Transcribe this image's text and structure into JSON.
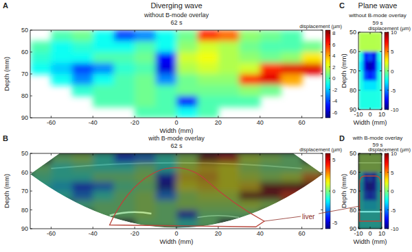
{
  "chart_data": [
    {
      "type": "heatmap",
      "label": "A",
      "title": "Diverging wave",
      "subtitle": "without B-mode overlay",
      "time_label": "62 s",
      "x_label": "Width (mm)",
      "y_label": "Depth (mm)",
      "xlim": [
        -70,
        70
      ],
      "ylim": [
        50,
        90
      ],
      "xticks": [
        -60,
        -40,
        -20,
        0,
        20,
        40,
        60
      ],
      "yticks": [
        50,
        60,
        70,
        80,
        90
      ],
      "x": [
        -65,
        -55,
        -45,
        -35,
        -25,
        -15,
        -5,
        5,
        15,
        25,
        35,
        45,
        55,
        65
      ],
      "y": [
        52.5,
        57.5,
        62.5,
        67.5,
        72.5,
        77.5,
        82.5,
        87.5
      ],
      "cells": [
        [
          null,
          0,
          0.5,
          -1,
          -4,
          -3,
          -1,
          0.5,
          6,
          5,
          1,
          0.5,
          0,
          null
        ],
        [
          0,
          -1,
          -0.5,
          -1,
          -1,
          0,
          -1,
          1,
          2,
          1.5,
          0.5,
          0,
          0,
          0.5
        ],
        [
          -0.5,
          -1,
          -1,
          0,
          0,
          0.5,
          -5,
          2,
          2.5,
          1.5,
          1,
          0.5,
          1,
          3
        ],
        [
          -1,
          -2,
          -4,
          -3,
          -0.5,
          0,
          -5.5,
          1.5,
          2,
          1.5,
          2,
          6,
          7,
          7
        ],
        [
          null,
          -1,
          -3,
          -1,
          0,
          0.5,
          -3,
          0.5,
          1,
          1,
          6,
          7,
          4,
          null
        ],
        [
          null,
          null,
          -0.5,
          0,
          0,
          0.5,
          0,
          0.5,
          0.5,
          0.5,
          1,
          0.5,
          null,
          null
        ],
        [
          null,
          null,
          null,
          0,
          0,
          0.5,
          0,
          -5,
          0,
          0,
          0,
          null,
          null,
          null
        ],
        [
          null,
          null,
          null,
          null,
          null,
          0,
          0,
          -1,
          0,
          null,
          null,
          null,
          null,
          null
        ]
      ],
      "colorbar": {
        "label": "displacement (µm)",
        "range": [
          -7,
          8.5
        ],
        "ticks": [
          -6,
          -4,
          -2,
          0,
          2,
          4,
          6,
          8
        ]
      }
    },
    {
      "type": "overlay",
      "label": "B",
      "subtitle": "with B-mode overlay",
      "time_label": "62 s",
      "annotations": [
        "liver"
      ],
      "x_label": "Width (mm)",
      "y_label": "Depth (mm)",
      "xlim": [
        -70,
        70
      ],
      "ylim": [
        50,
        90
      ],
      "xticks": [
        -60,
        -40,
        -20,
        0,
        20,
        40,
        60
      ],
      "yticks": [
        50,
        60,
        70,
        80,
        90
      ],
      "x": [
        -65,
        -55,
        -45,
        -35,
        -25,
        -15,
        -5,
        5,
        15,
        25,
        35,
        45,
        55,
        65
      ],
      "y": [
        52.5,
        57.5,
        62.5,
        67.5,
        72.5,
        77.5,
        82.5,
        87.5
      ],
      "cells": [
        [
          null,
          0,
          0.5,
          -1,
          -4,
          -3,
          -1,
          0.5,
          6,
          5,
          1,
          0.5,
          0,
          null
        ],
        [
          0,
          -1,
          -0.5,
          -1,
          -1,
          0,
          -1,
          1,
          2,
          1.5,
          0.5,
          0,
          0,
          0.5
        ],
        [
          -0.5,
          -1,
          -1,
          0,
          0,
          0.5,
          -5,
          2,
          2.5,
          1.5,
          1,
          0.5,
          1,
          3
        ],
        [
          -1,
          -2,
          -4,
          -3,
          -0.5,
          0,
          -5.5,
          1.5,
          2,
          1.5,
          2,
          6,
          7,
          7
        ],
        [
          null,
          -1,
          -3,
          -1,
          0,
          0.5,
          -3,
          0.5,
          1,
          1,
          6,
          7,
          4,
          null
        ],
        [
          null,
          null,
          -0.5,
          0,
          0,
          0.5,
          0,
          0.5,
          0.5,
          0.5,
          1,
          0.5,
          null,
          null
        ],
        [
          null,
          null,
          null,
          0,
          0,
          0.5,
          0,
          -5,
          0,
          0,
          0,
          null,
          null,
          null
        ],
        [
          null,
          null,
          null,
          null,
          null,
          0,
          0,
          -1,
          0,
          null,
          null,
          null,
          null,
          null
        ]
      ],
      "colorbar": {
        "label": "displacement (µm)",
        "range": [
          -6,
          6
        ],
        "ticks": [
          -5,
          0,
          5
        ]
      }
    },
    {
      "type": "heatmap",
      "label": "C",
      "title": "Plane wave",
      "subtitle": "without B-mode overlay",
      "time_label": "59 s",
      "x_label": "Width (mm)",
      "y_label": "Depth (mm)",
      "xlim": [
        -10,
        10
      ],
      "ylim": [
        50,
        90
      ],
      "xticks": [
        -10,
        0,
        10
      ],
      "yticks": [
        50,
        60,
        70,
        80,
        90
      ],
      "x": [
        -8,
        -4,
        0,
        4,
        8
      ],
      "y": [
        52.5,
        57.5,
        62.5,
        67.5,
        72.5,
        77.5,
        82.5,
        87.5
      ],
      "cells": [
        [
          1,
          1,
          1,
          1,
          1
        ],
        [
          1,
          1,
          1,
          1,
          1
        ],
        [
          -2,
          -7,
          -6,
          -8,
          -2
        ],
        [
          -3,
          -8,
          -9,
          -8,
          -3
        ],
        [
          -2,
          -6,
          -7,
          -6,
          -2
        ],
        [
          -2,
          -3,
          -3,
          -3,
          -2
        ],
        [
          -2,
          -2,
          -2,
          -2,
          -2
        ],
        [
          -2,
          -2,
          -2,
          -2,
          -2
        ]
      ],
      "colorbar": {
        "label": "displacement (µm)",
        "range": [
          -10,
          10
        ],
        "ticks": [
          -10,
          -5,
          0,
          5,
          10
        ]
      }
    },
    {
      "type": "overlay",
      "label": "D",
      "subtitle": "with B-mode overlay",
      "time_label": "59 s",
      "x_label": "Width (mm)",
      "y_label": "Depth (mm)",
      "xlim": [
        -10,
        10
      ],
      "ylim": [
        50,
        90
      ],
      "xticks": [
        -10,
        0,
        10
      ],
      "yticks": [
        50,
        60,
        70,
        80,
        90
      ],
      "x": [
        -8,
        -4,
        0,
        4,
        8
      ],
      "y": [
        52.5,
        57.5,
        62.5,
        67.5,
        72.5,
        77.5,
        82.5,
        87.5
      ],
      "cells": [
        [
          1,
          1,
          1,
          1,
          1
        ],
        [
          1,
          1,
          1,
          1,
          1
        ],
        [
          -2,
          -7,
          -6,
          -8,
          -2
        ],
        [
          -3,
          -8,
          -9,
          -8,
          -3
        ],
        [
          -2,
          -6,
          -7,
          -6,
          -2
        ],
        [
          -2,
          -3,
          -3,
          -3,
          -2
        ],
        [
          -2,
          -2,
          -2,
          -2,
          -2
        ],
        [
          -2,
          -2,
          -2,
          -2,
          -2
        ]
      ],
      "colorbar": {
        "label": "displacement (µm)",
        "range": [
          -10,
          10
        ],
        "ticks": [
          -10,
          -5,
          0,
          5,
          10
        ]
      }
    }
  ]
}
